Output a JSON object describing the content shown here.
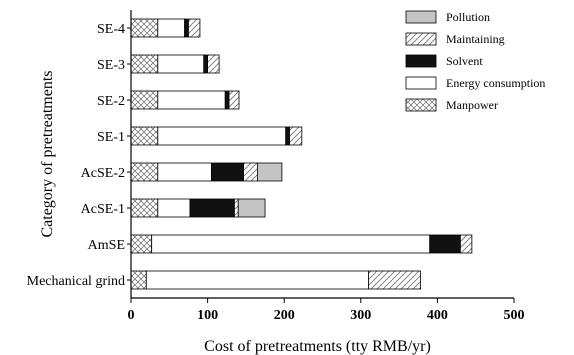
{
  "chart_data": {
    "type": "bar",
    "orientation": "horizontal",
    "stacked": true,
    "xlabel": "Cost of pretreatments (tty RMB/yr)",
    "ylabel": "Category of pretreatments",
    "xlim": [
      0,
      500
    ],
    "xticks": [
      "0",
      "100",
      "200",
      "300",
      "400",
      "500"
    ],
    "legend_position": "top-right",
    "categories": [
      "Mechanical grind",
      "AmSE",
      "AcSE-1",
      "AcSE-2",
      "SE-1",
      "SE-2",
      "SE-3",
      "SE-4"
    ],
    "series": [
      {
        "name": "Manpower",
        "pattern": "crosshatch",
        "values": [
          20,
          27,
          35,
          35,
          35,
          35,
          35,
          35
        ]
      },
      {
        "name": "Energy consumption",
        "pattern": "white",
        "values": [
          290,
          363,
          42,
          70,
          167,
          88,
          60,
          35
        ]
      },
      {
        "name": "Solvent",
        "pattern": "black",
        "values": [
          0,
          40,
          58,
          42,
          5,
          5,
          5,
          5
        ]
      },
      {
        "name": "Maintaining",
        "pattern": "diagonal",
        "values": [
          68,
          15,
          5,
          18,
          16,
          13,
          15,
          15
        ]
      },
      {
        "name": "Pollution",
        "pattern": "gray",
        "values": [
          0,
          0,
          35,
          32,
          0,
          0,
          0,
          0
        ]
      }
    ],
    "legend_order": [
      "Pollution",
      "Maintaining",
      "Solvent",
      "Energy consumption",
      "Manpower"
    ]
  }
}
